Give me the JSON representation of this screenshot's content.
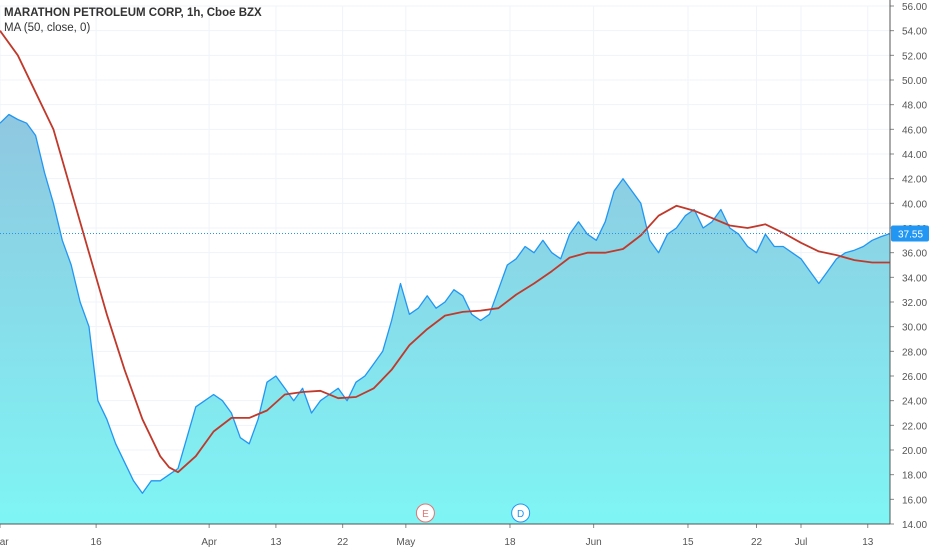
{
  "chart_data": {
    "type": "area",
    "title": "MARATHON PETROLEUM CORP, 1h, Cboe BZX",
    "indicator": "MA (50, close, 0)",
    "colors": {
      "price_line": "#2196f3",
      "area_top": "#8fc7e0",
      "area_bottom": "#7ff5f5",
      "ma_line": "#c0392b",
      "last_price_label_bg": "#2196f3"
    },
    "ylim": [
      14,
      56
    ],
    "y_ticks": [
      "56.00",
      "54.00",
      "52.00",
      "50.00",
      "48.00",
      "46.00",
      "44.00",
      "42.00",
      "40.00",
      "38.00",
      "36.00",
      "34.00",
      "32.00",
      "30.00",
      "28.00",
      "26.00",
      "24.00",
      "22.00",
      "20.00",
      "18.00",
      "16.00",
      "14.00"
    ],
    "x_ticks": [
      {
        "label": "Mar",
        "pos": 0.0
      },
      {
        "label": "16",
        "pos": 0.108
      },
      {
        "label": "Apr",
        "pos": 0.235
      },
      {
        "label": "13",
        "pos": 0.31
      },
      {
        "label": "22",
        "pos": 0.385
      },
      {
        "label": "May",
        "pos": 0.456
      },
      {
        "label": "18",
        "pos": 0.573
      },
      {
        "label": "Jun",
        "pos": 0.667
      },
      {
        "label": "15",
        "pos": 0.773
      },
      {
        "label": "22",
        "pos": 0.85
      },
      {
        "label": "Jul",
        "pos": 0.9
      },
      {
        "label": "13",
        "pos": 0.975
      }
    ],
    "last_price": "37.55",
    "events": [
      {
        "label": "E",
        "pos": 0.478
      },
      {
        "label": "D",
        "pos": 0.585
      }
    ],
    "series": [
      {
        "name": "MARATHON PETROLEUM CORP",
        "x": [
          0,
          0.01,
          0.02,
          0.03,
          0.04,
          0.05,
          0.06,
          0.07,
          0.08,
          0.09,
          0.1,
          0.11,
          0.12,
          0.13,
          0.14,
          0.15,
          0.16,
          0.17,
          0.18,
          0.19,
          0.2,
          0.21,
          0.22,
          0.23,
          0.24,
          0.25,
          0.26,
          0.27,
          0.28,
          0.29,
          0.3,
          0.31,
          0.32,
          0.33,
          0.34,
          0.35,
          0.36,
          0.37,
          0.38,
          0.39,
          0.4,
          0.41,
          0.42,
          0.43,
          0.44,
          0.45,
          0.46,
          0.47,
          0.48,
          0.49,
          0.5,
          0.51,
          0.52,
          0.53,
          0.54,
          0.55,
          0.56,
          0.57,
          0.58,
          0.59,
          0.6,
          0.61,
          0.62,
          0.63,
          0.64,
          0.65,
          0.66,
          0.67,
          0.68,
          0.69,
          0.7,
          0.71,
          0.72,
          0.73,
          0.74,
          0.75,
          0.76,
          0.77,
          0.78,
          0.79,
          0.8,
          0.81,
          0.82,
          0.83,
          0.84,
          0.85,
          0.86,
          0.87,
          0.88,
          0.89,
          0.9,
          0.91,
          0.92,
          0.93,
          0.94,
          0.95,
          0.96,
          0.97,
          0.98,
          0.99,
          1
        ],
        "values": [
          46.5,
          47.2,
          46.8,
          46.5,
          45.5,
          42.5,
          40,
          37,
          35,
          32,
          30,
          24,
          22.5,
          20.5,
          19,
          17.5,
          16.5,
          17.5,
          17.5,
          18,
          18.5,
          21,
          23.5,
          24,
          24.5,
          24,
          23,
          21,
          20.5,
          22.5,
          25.5,
          26,
          25,
          24,
          25,
          23,
          24,
          24.5,
          25,
          24,
          25.5,
          26,
          27,
          28,
          30.5,
          33.5,
          31,
          31.5,
          32.5,
          31.5,
          32,
          33,
          32.5,
          31,
          30.5,
          31,
          33,
          35,
          35.5,
          36.5,
          36,
          37,
          36,
          35.5,
          37.5,
          38.5,
          37.5,
          37,
          38.5,
          41,
          42,
          41,
          40,
          37,
          36,
          37.5,
          38,
          39,
          39.5,
          38,
          38.5,
          39.5,
          38,
          37.5,
          36.5,
          36,
          37.5,
          36.5,
          36.5,
          36,
          35.5,
          34.5,
          33.5,
          34.5,
          35.5,
          36,
          36.2,
          36.5,
          37,
          37.3,
          37.55
        ]
      },
      {
        "name": "MA (50, close, 0)",
        "x": [
          0,
          0.02,
          0.04,
          0.06,
          0.08,
          0.1,
          0.12,
          0.14,
          0.16,
          0.18,
          0.19,
          0.2,
          0.22,
          0.24,
          0.26,
          0.28,
          0.3,
          0.32,
          0.34,
          0.36,
          0.38,
          0.4,
          0.42,
          0.44,
          0.46,
          0.48,
          0.5,
          0.52,
          0.54,
          0.56,
          0.58,
          0.6,
          0.62,
          0.64,
          0.66,
          0.68,
          0.7,
          0.72,
          0.74,
          0.76,
          0.78,
          0.8,
          0.82,
          0.84,
          0.86,
          0.88,
          0.9,
          0.92,
          0.94,
          0.96,
          0.98,
          1
        ],
        "values": [
          54,
          52,
          49,
          46,
          41,
          36,
          31,
          26.5,
          22.5,
          19.5,
          18.6,
          18.2,
          19.5,
          21.5,
          22.6,
          22.6,
          23.2,
          24.5,
          24.7,
          24.8,
          24.2,
          24.3,
          25,
          26.5,
          28.5,
          29.8,
          30.9,
          31.2,
          31.3,
          31.5,
          32.6,
          33.5,
          34.5,
          35.6,
          36,
          36,
          36.3,
          37.4,
          39,
          39.8,
          39.4,
          38.8,
          38.2,
          38,
          38.3,
          37.6,
          36.8,
          36.1,
          35.8,
          35.4,
          35.2,
          35.2
        ]
      }
    ]
  }
}
